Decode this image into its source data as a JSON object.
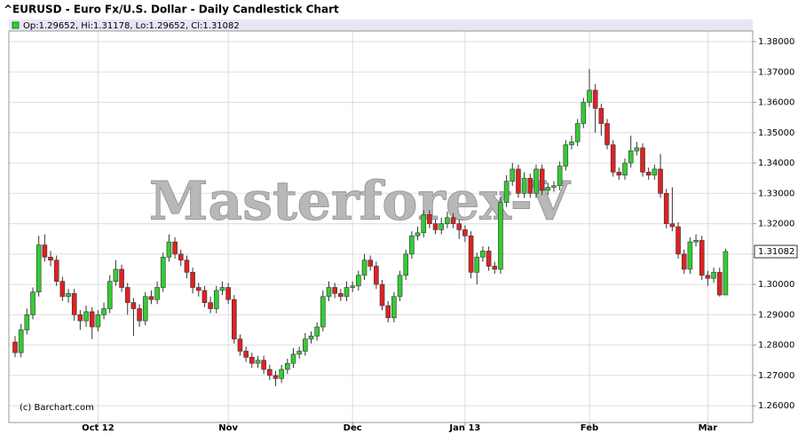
{
  "chart_data": {
    "type": "candlestick",
    "title": "^EURUSD - Euro Fx/U.S. Dollar - Daily Candlestick Chart",
    "info": "Op:1.29652, Hi:1.31178, Lo:1.29652, Cl:1.31082",
    "watermark": "Masterforex-V",
    "credit": "(c) Barchart.com",
    "up_color": "#33cc33",
    "down_color": "#dd2222",
    "grid": true,
    "ylim": [
      1.2545,
      1.3835
    ],
    "yticks": [
      {
        "value": 1.38,
        "label": "1.38000"
      },
      {
        "value": 1.37,
        "label": "1.37000"
      },
      {
        "value": 1.36,
        "label": "1.36000"
      },
      {
        "value": 1.35,
        "label": "1.35000"
      },
      {
        "value": 1.34,
        "label": "1.34000"
      },
      {
        "value": 1.33,
        "label": "1.33000"
      },
      {
        "value": 1.32,
        "label": "1.32000"
      },
      {
        "value": 1.31,
        "label": "1.31000"
      },
      {
        "value": 1.3,
        "label": "1.30000"
      },
      {
        "value": 1.29,
        "label": "1.29000"
      },
      {
        "value": 1.28,
        "label": "1.28000"
      },
      {
        "value": 1.27,
        "label": "1.27000"
      },
      {
        "value": 1.26,
        "label": "1.26000"
      }
    ],
    "categories": [
      null,
      null,
      null,
      null,
      null,
      null,
      null,
      null,
      null,
      null,
      null,
      null,
      null,
      null,
      "Oct 12",
      null,
      null,
      null,
      null,
      null,
      null,
      null,
      null,
      null,
      null,
      null,
      null,
      null,
      null,
      null,
      null,
      null,
      null,
      null,
      null,
      null,
      "Nov",
      null,
      null,
      null,
      null,
      null,
      null,
      null,
      null,
      null,
      null,
      null,
      null,
      null,
      null,
      null,
      null,
      null,
      null,
      null,
      null,
      "Dec",
      null,
      null,
      null,
      null,
      null,
      null,
      null,
      null,
      null,
      null,
      null,
      null,
      null,
      null,
      null,
      null,
      null,
      null,
      "Jan 13",
      null,
      null,
      null,
      null,
      null,
      null,
      null,
      null,
      null,
      null,
      null,
      null,
      null,
      null,
      null,
      null,
      null,
      null,
      null,
      null,
      "Feb",
      null,
      null,
      null,
      null,
      null,
      null,
      null,
      null,
      null,
      null,
      null,
      null,
      null,
      null,
      null,
      null,
      null,
      null,
      null,
      "Mar",
      null,
      null,
      null
    ],
    "open": [
      1.281,
      1.2775,
      1.285,
      1.29,
      1.2975,
      1.313,
      1.309,
      1.308,
      1.301,
      1.296,
      1.297,
      1.29,
      1.288,
      1.291,
      1.286,
      1.29,
      1.292,
      1.301,
      1.305,
      1.299,
      1.294,
      1.292,
      1.288,
      1.296,
      1.295,
      1.299,
      1.309,
      1.314,
      1.31,
      1.308,
      1.304,
      1.299,
      1.298,
      1.294,
      1.292,
      1.298,
      1.299,
      1.295,
      1.282,
      1.278,
      1.276,
      1.274,
      1.275,
      1.272,
      1.27,
      1.269,
      1.272,
      1.274,
      1.277,
      1.278,
      1.282,
      1.283,
      1.286,
      1.296,
      1.299,
      1.297,
      1.296,
      1.299,
      1.2995,
      1.303,
      1.308,
      1.306,
      1.3,
      1.293,
      1.289,
      1.296,
      1.303,
      1.31,
      1.316,
      1.317,
      1.323,
      1.32,
      1.318,
      1.32,
      1.322,
      1.32,
      1.318,
      1.316,
      1.304,
      1.309,
      1.311,
      1.306,
      1.305,
      1.327,
      1.334,
      1.338,
      1.33,
      1.335,
      1.33,
      1.338,
      1.331,
      1.332,
      1.3325,
      1.339,
      1.346,
      1.347,
      1.353,
      1.36,
      1.364,
      1.358,
      1.353,
      1.346,
      1.337,
      1.336,
      1.34,
      1.344,
      1.345,
      1.337,
      1.336,
      1.338,
      1.33,
      1.32,
      1.319,
      1.31,
      1.305,
      1.314,
      1.3145,
      1.303,
      1.302,
      1.304,
      1.29652
    ],
    "high": [
      1.283,
      1.287,
      1.292,
      1.299,
      1.316,
      1.3165,
      1.311,
      1.3095,
      1.3025,
      1.2985,
      1.2985,
      1.2915,
      1.293,
      1.2925,
      1.2915,
      1.294,
      1.303,
      1.308,
      1.3065,
      1.3005,
      1.2955,
      1.2935,
      1.2975,
      1.298,
      1.301,
      1.3105,
      1.3165,
      1.3155,
      1.3115,
      1.3095,
      1.3055,
      1.3005,
      1.2995,
      1.296,
      1.2995,
      1.301,
      1.3005,
      1.2965,
      1.2835,
      1.2795,
      1.2775,
      1.2765,
      1.2765,
      1.2735,
      1.2715,
      1.2735,
      1.2755,
      1.279,
      1.2795,
      1.284,
      1.2845,
      1.2875,
      1.298,
      1.301,
      1.3005,
      1.2985,
      1.301,
      1.301,
      1.3045,
      1.31,
      1.3095,
      1.3075,
      1.3015,
      1.2945,
      1.2975,
      1.3045,
      1.3115,
      1.3175,
      1.319,
      1.3245,
      1.3245,
      1.3215,
      1.322,
      1.324,
      1.3235,
      1.3215,
      1.3195,
      1.3175,
      1.3105,
      1.3125,
      1.3125,
      1.3075,
      1.329,
      1.336,
      1.34,
      1.3395,
      1.337,
      1.3365,
      1.3395,
      1.3395,
      1.3335,
      1.334,
      1.3405,
      1.3475,
      1.349,
      1.3545,
      1.3615,
      1.371,
      1.366,
      1.3595,
      1.3545,
      1.3475,
      1.3385,
      1.3415,
      1.349,
      1.347,
      1.3465,
      1.3385,
      1.3395,
      1.343,
      1.3315,
      1.332,
      1.3205,
      1.3115,
      1.3155,
      1.3165,
      1.316,
      1.3045,
      1.3055,
      1.3055,
      1.31178
    ],
    "low": [
      1.276,
      1.276,
      1.2835,
      1.2885,
      1.296,
      1.3075,
      1.306,
      1.2995,
      1.2945,
      1.294,
      1.288,
      1.285,
      1.286,
      1.282,
      1.2845,
      1.2885,
      1.2905,
      1.2995,
      1.2975,
      1.29,
      1.283,
      1.286,
      1.2865,
      1.2935,
      1.2935,
      1.2975,
      1.3075,
      1.3085,
      1.306,
      1.302,
      1.297,
      1.296,
      1.2925,
      1.2905,
      1.2905,
      1.2965,
      1.2935,
      1.2805,
      1.2765,
      1.2745,
      1.2725,
      1.2725,
      1.2705,
      1.2685,
      1.2665,
      1.2675,
      1.2705,
      1.2725,
      1.2755,
      1.2765,
      1.2805,
      1.2815,
      1.2845,
      1.2945,
      1.2955,
      1.2945,
      1.2945,
      1.2975,
      1.298,
      1.3015,
      1.3045,
      1.2985,
      1.2915,
      1.2875,
      1.2875,
      1.2945,
      1.3015,
      1.3085,
      1.3145,
      1.3155,
      1.3185,
      1.3165,
      1.3165,
      1.3185,
      1.3185,
      1.315,
      1.314,
      1.302,
      1.3,
      1.3075,
      1.3045,
      1.3035,
      1.3035,
      1.3255,
      1.3325,
      1.3285,
      1.3285,
      1.3285,
      1.3285,
      1.3295,
      1.3295,
      1.3305,
      1.331,
      1.3375,
      1.3445,
      1.3455,
      1.3515,
      1.3585,
      1.35,
      1.349,
      1.3445,
      1.3355,
      1.3345,
      1.3345,
      1.3385,
      1.3425,
      1.3355,
      1.3345,
      1.3345,
      1.3285,
      1.3185,
      1.3175,
      1.3085,
      1.3035,
      1.3035,
      1.3125,
      1.3015,
      1.2995,
      1.3005,
      1.296,
      1.29652
    ],
    "close": [
      1.2775,
      1.285,
      1.29,
      1.2975,
      1.313,
      1.309,
      1.308,
      1.301,
      1.296,
      1.297,
      1.29,
      1.288,
      1.291,
      1.286,
      1.29,
      1.292,
      1.301,
      1.305,
      1.299,
      1.294,
      1.292,
      1.288,
      1.296,
      1.295,
      1.299,
      1.309,
      1.314,
      1.31,
      1.308,
      1.304,
      1.299,
      1.298,
      1.294,
      1.292,
      1.298,
      1.299,
      1.295,
      1.282,
      1.278,
      1.276,
      1.274,
      1.275,
      1.272,
      1.27,
      1.269,
      1.272,
      1.274,
      1.277,
      1.278,
      1.282,
      1.283,
      1.286,
      1.296,
      1.299,
      1.297,
      1.296,
      1.299,
      1.2995,
      1.303,
      1.308,
      1.306,
      1.3,
      1.293,
      1.289,
      1.296,
      1.303,
      1.31,
      1.316,
      1.317,
      1.323,
      1.32,
      1.318,
      1.32,
      1.322,
      1.32,
      1.318,
      1.316,
      1.304,
      1.309,
      1.311,
      1.306,
      1.305,
      1.327,
      1.334,
      1.338,
      1.33,
      1.335,
      1.33,
      1.338,
      1.331,
      1.332,
      1.3325,
      1.339,
      1.346,
      1.347,
      1.353,
      1.36,
      1.364,
      1.358,
      1.353,
      1.346,
      1.337,
      1.336,
      1.34,
      1.344,
      1.345,
      1.337,
      1.336,
      1.338,
      1.33,
      1.32,
      1.319,
      1.31,
      1.305,
      1.314,
      1.3145,
      1.303,
      1.302,
      1.304,
      1.29652,
      1.31082
    ]
  }
}
